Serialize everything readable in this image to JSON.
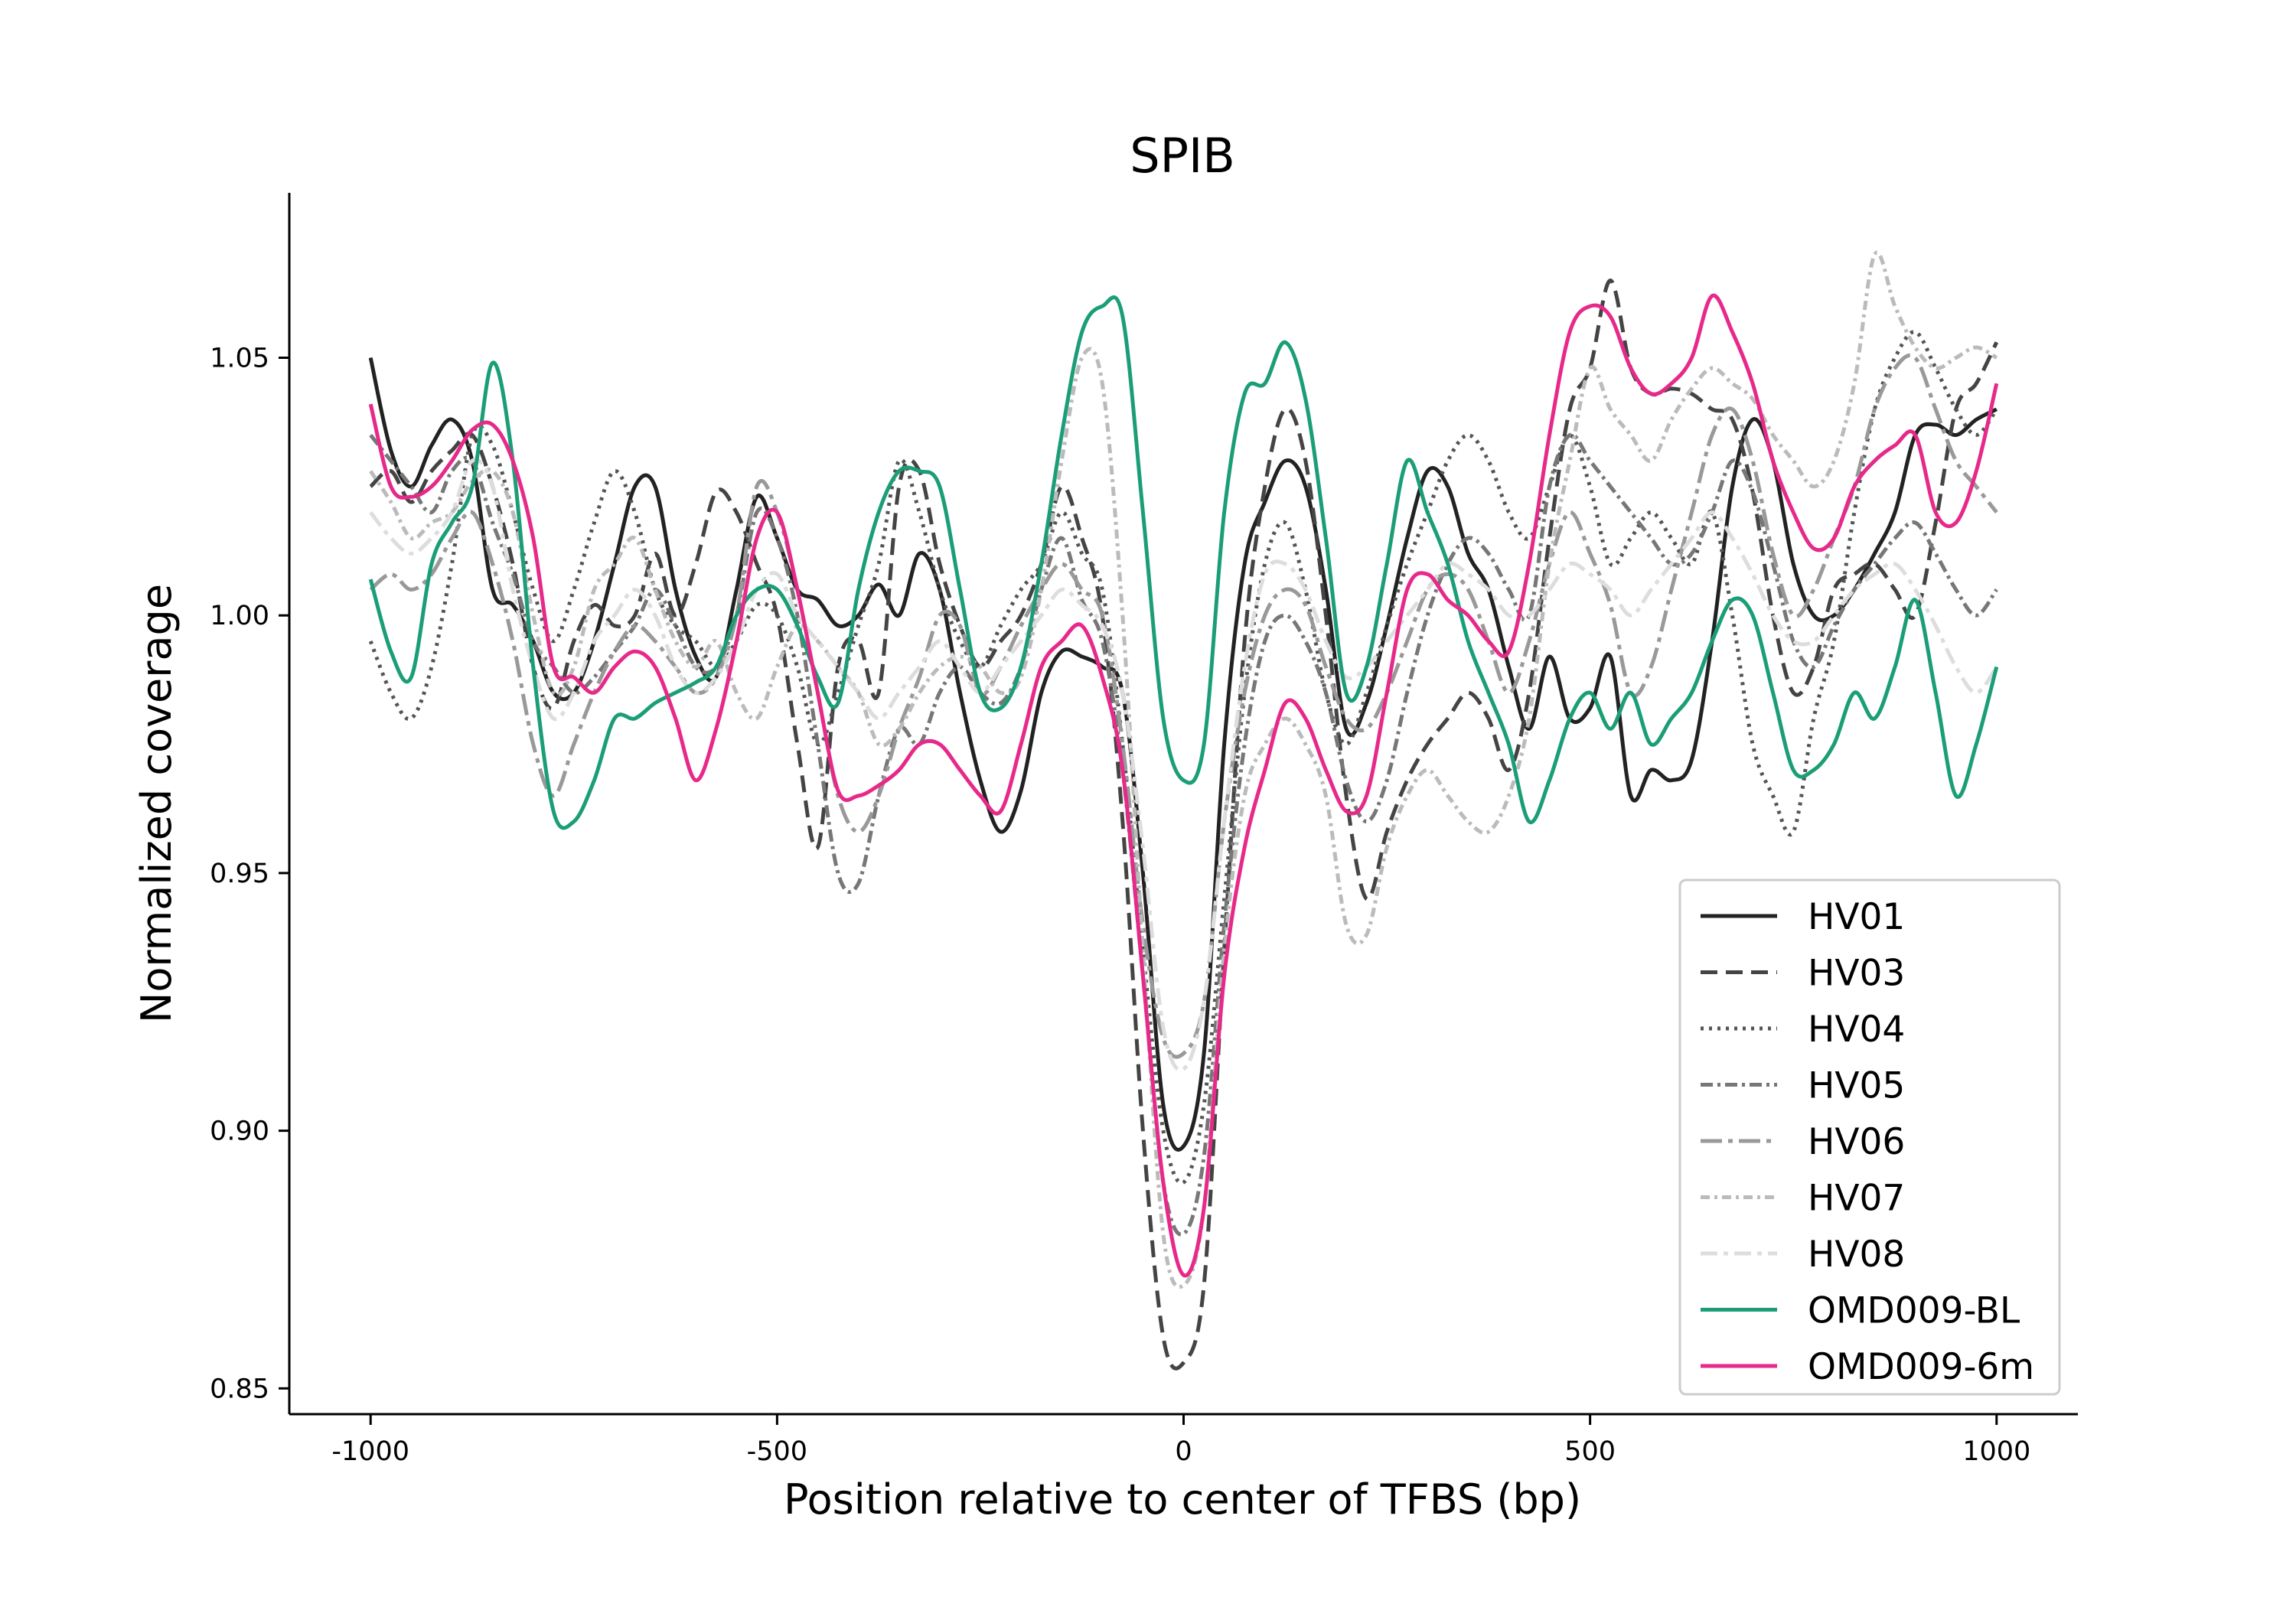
{
  "chart_data": {
    "type": "line",
    "title": "SPIB",
    "xlabel": "Position relative to center of TFBS (bp)",
    "ylabel": "Normalized coverage",
    "xlim": [
      -1100,
      1100
    ],
    "ylim": [
      0.845,
      1.082
    ],
    "xticks": [
      -1000,
      -500,
      0,
      500,
      1000
    ],
    "xtick_labels": [
      "-1000",
      "-500",
      "0",
      "500",
      "1000"
    ],
    "yticks": [
      0.85,
      0.9,
      0.95,
      1.0,
      1.05
    ],
    "ytick_labels": [
      "0.85",
      "0.90",
      "0.95",
      "1.00",
      "1.05"
    ],
    "grid": false,
    "legend_position": "lower-right",
    "x": [
      -1000,
      -975,
      -950,
      -925,
      -900,
      -875,
      -850,
      -825,
      -800,
      -775,
      -750,
      -725,
      -700,
      -675,
      -650,
      -625,
      -600,
      -575,
      -550,
      -525,
      -500,
      -475,
      -450,
      -425,
      -400,
      -375,
      -350,
      -325,
      -300,
      -275,
      -250,
      -225,
      -200,
      -175,
      -150,
      -125,
      -100,
      -75,
      -50,
      -25,
      0,
      25,
      50,
      75,
      100,
      125,
      150,
      175,
      200,
      225,
      250,
      275,
      300,
      325,
      350,
      375,
      400,
      425,
      450,
      475,
      500,
      525,
      550,
      575,
      600,
      625,
      650,
      675,
      700,
      725,
      750,
      775,
      800,
      825,
      850,
      875,
      900,
      925,
      950,
      975,
      1000
    ],
    "series": [
      {
        "name": "HV01",
        "color": "#222222",
        "dash": "",
        "values": [
          1.05,
          1.032,
          1.025,
          1.033,
          1.038,
          1.03,
          1.005,
          1.002,
          0.995,
          0.985,
          0.985,
          0.995,
          1.01,
          1.025,
          1.025,
          1.005,
          0.992,
          0.988,
          1.005,
          1.023,
          1.015,
          1.005,
          1.003,
          0.998,
          1.0,
          1.006,
          1.0,
          1.012,
          1.005,
          0.985,
          0.968,
          0.958,
          0.966,
          0.985,
          0.993,
          0.992,
          0.99,
          0.985,
          0.95,
          0.905,
          0.897,
          0.915,
          0.975,
          1.01,
          1.022,
          1.03,
          1.025,
          1.005,
          0.978,
          0.983,
          0.998,
          1.015,
          1.028,
          1.025,
          1.012,
          1.005,
          0.99,
          0.978,
          0.992,
          0.98,
          0.982,
          0.992,
          0.965,
          0.97,
          0.968,
          0.972,
          0.995,
          1.025,
          1.038,
          1.03,
          1.01,
          1.0,
          1.0,
          1.005,
          1.012,
          1.02,
          1.035,
          1.037,
          1.035,
          1.038,
          1.04
        ]
      },
      {
        "name": "HV03",
        "color": "#444444",
        "dash": "22 11",
        "values": [
          1.025,
          1.028,
          1.022,
          1.028,
          1.032,
          1.035,
          1.025,
          1.01,
          0.99,
          0.982,
          0.995,
          1.002,
          0.998,
          1.0,
          1.012,
          1.0,
          1.01,
          1.024,
          1.02,
          1.01,
          1.0,
          0.975,
          0.955,
          0.99,
          0.995,
          0.985,
          1.025,
          1.028,
          1.01,
          0.998,
          0.99,
          0.995,
          1.0,
          1.01,
          1.025,
          1.015,
          1.0,
          0.96,
          0.9,
          0.86,
          0.855,
          0.87,
          0.935,
          0.995,
          1.025,
          1.04,
          1.03,
          1.0,
          0.965,
          0.945,
          0.958,
          0.968,
          0.975,
          0.98,
          0.985,
          0.98,
          0.97,
          0.985,
          1.015,
          1.04,
          1.048,
          1.065,
          1.048,
          1.043,
          1.044,
          1.043,
          1.04,
          1.038,
          1.024,
          1.0,
          0.985,
          0.99,
          1.005,
          1.008,
          1.01,
          1.005,
          1.0,
          1.018,
          1.04,
          1.045,
          1.053
        ]
      },
      {
        "name": "HV04",
        "color": "#555555",
        "dash": "4 7",
        "values": [
          0.995,
          0.985,
          0.98,
          0.99,
          1.01,
          1.035,
          1.033,
          1.02,
          1.005,
          0.995,
          1.005,
          1.018,
          1.028,
          1.02,
          1.005,
          0.998,
          0.995,
          0.99,
          0.995,
          1.002,
          1.0,
          0.99,
          0.975,
          0.985,
          0.998,
          1.01,
          1.03,
          1.02,
          1.005,
          0.995,
          0.99,
          0.998,
          1.005,
          1.01,
          1.02,
          1.012,
          1.005,
          0.975,
          0.935,
          0.9,
          0.89,
          0.905,
          0.945,
          0.985,
          1.01,
          1.018,
          1.005,
          0.985,
          0.975,
          0.985,
          0.998,
          1.01,
          1.02,
          1.03,
          1.035,
          1.03,
          1.02,
          1.015,
          1.025,
          1.035,
          1.025,
          1.01,
          1.015,
          1.02,
          1.015,
          1.01,
          1.02,
          1.0,
          0.975,
          0.965,
          0.958,
          0.98,
          0.995,
          1.02,
          1.04,
          1.05,
          1.055,
          1.048,
          1.04,
          1.035,
          1.04
        ]
      },
      {
        "name": "HV05",
        "color": "#777777",
        "dash": "16 6 4 6",
        "values": [
          1.035,
          1.03,
          1.025,
          1.02,
          1.028,
          1.03,
          1.018,
          1.008,
          0.995,
          0.99,
          0.985,
          0.988,
          0.993,
          0.998,
          1.005,
          0.998,
          0.99,
          0.99,
          1.0,
          1.02,
          1.015,
          1.0,
          0.975,
          0.95,
          0.948,
          0.965,
          0.978,
          0.975,
          0.985,
          0.99,
          0.985,
          0.983,
          0.99,
          1.005,
          1.015,
          1.003,
          0.995,
          0.97,
          0.93,
          0.89,
          0.88,
          0.895,
          0.94,
          0.975,
          0.995,
          1.0,
          0.995,
          0.985,
          0.968,
          0.96,
          0.968,
          0.985,
          1.0,
          1.01,
          1.015,
          1.012,
          1.005,
          1.0,
          1.025,
          1.035,
          1.03,
          1.025,
          1.02,
          1.015,
          1.01,
          1.012,
          1.02,
          1.03,
          1.024,
          1.01,
          0.995,
          0.99,
          0.998,
          1.005,
          1.01,
          1.015,
          1.018,
          1.012,
          1.005,
          1.0,
          1.005
        ]
      },
      {
        "name": "HV06",
        "color": "#999999",
        "dash": "28 8 6 8",
        "values": [
          1.005,
          1.008,
          1.005,
          1.008,
          1.015,
          1.02,
          1.01,
          0.995,
          0.975,
          0.965,
          0.975,
          0.985,
          0.993,
          0.998,
          0.995,
          0.99,
          0.985,
          0.988,
          1.0,
          1.025,
          1.02,
          1.005,
          0.985,
          0.965,
          0.958,
          0.965,
          0.978,
          0.988,
          1.0,
          0.998,
          0.985,
          0.99,
          0.998,
          1.005,
          1.01,
          1.005,
          1.0,
          0.975,
          0.94,
          0.918,
          0.915,
          0.925,
          0.96,
          0.985,
          1.0,
          1.005,
          1.002,
          0.99,
          0.98,
          0.978,
          0.985,
          0.995,
          1.005,
          1.008,
          1.005,
          0.995,
          0.985,
          0.995,
          1.01,
          1.02,
          1.012,
          1.002,
          0.985,
          0.99,
          1.005,
          1.02,
          1.035,
          1.04,
          1.03,
          1.012,
          1.0,
          1.005,
          1.015,
          1.025,
          1.04,
          1.048,
          1.05,
          1.04,
          1.03,
          1.025,
          1.02
        ]
      },
      {
        "name": "HV07",
        "color": "#bbbbbb",
        "dash": "12 6 4 6",
        "values": [
          1.028,
          1.022,
          1.015,
          1.018,
          1.02,
          1.026,
          1.028,
          1.02,
          1.0,
          0.985,
          0.99,
          1.005,
          1.01,
          1.015,
          1.005,
          0.995,
          0.99,
          0.995,
          0.985,
          0.98,
          0.99,
          0.998,
          0.995,
          0.99,
          0.985,
          0.975,
          0.978,
          0.985,
          0.99,
          0.992,
          0.99,
          0.985,
          0.988,
          1.005,
          1.03,
          1.05,
          1.045,
          1.0,
          0.935,
          0.88,
          0.87,
          0.885,
          0.935,
          0.965,
          0.975,
          0.98,
          0.975,
          0.965,
          0.94,
          0.938,
          0.955,
          0.965,
          0.97,
          0.965,
          0.96,
          0.958,
          0.965,
          0.98,
          1.01,
          1.03,
          1.048,
          1.04,
          1.035,
          1.03,
          1.038,
          1.044,
          1.048,
          1.045,
          1.042,
          1.035,
          1.03,
          1.025,
          1.03,
          1.045,
          1.07,
          1.06,
          1.052,
          1.048,
          1.05,
          1.052,
          1.05
        ]
      },
      {
        "name": "HV08",
        "color": "#dddddd",
        "dash": "22 8 6 8",
        "values": [
          1.02,
          1.015,
          1.012,
          1.015,
          1.02,
          1.03,
          1.025,
          1.005,
          0.99,
          0.98,
          0.985,
          0.995,
          1.0,
          1.005,
          1.0,
          0.99,
          0.985,
          0.988,
          0.995,
          1.005,
          1.008,
          1.0,
          0.995,
          0.99,
          0.985,
          0.98,
          0.985,
          0.99,
          0.995,
          0.99,
          0.985,
          0.99,
          0.995,
          1.0,
          1.005,
          1.002,
          0.998,
          0.985,
          0.955,
          0.92,
          0.912,
          0.925,
          0.96,
          0.99,
          1.008,
          1.01,
          1.005,
          0.995,
          0.988,
          0.99,
          0.995,
          1.0,
          1.005,
          1.01,
          1.008,
          1.005,
          1.0,
          1.0,
          1.005,
          1.01,
          1.008,
          1.005,
          1.0,
          1.005,
          1.01,
          1.015,
          1.02,
          1.015,
          1.008,
          1.0,
          0.995,
          0.995,
          1.0,
          1.005,
          1.008,
          1.01,
          1.005,
          0.998,
          0.99,
          0.985,
          0.99
        ]
      },
      {
        "name": "OMD009-BL",
        "color": "#1b9e77",
        "dash": "",
        "values": [
          1.007,
          0.993,
          0.988,
          1.01,
          1.018,
          1.025,
          1.049,
          1.03,
          0.99,
          0.962,
          0.96,
          0.968,
          0.98,
          0.98,
          0.983,
          0.985,
          0.987,
          0.99,
          1.0,
          1.005,
          1.005,
          0.998,
          0.988,
          0.983,
          1.005,
          1.02,
          1.028,
          1.028,
          1.025,
          1.005,
          0.985,
          0.982,
          0.99,
          1.01,
          1.035,
          1.055,
          1.06,
          1.058,
          1.02,
          0.98,
          0.968,
          0.975,
          1.02,
          1.043,
          1.045,
          1.053,
          1.042,
          1.015,
          0.985,
          0.99,
          1.01,
          1.03,
          1.02,
          1.01,
          0.995,
          0.985,
          0.975,
          0.96,
          0.968,
          0.98,
          0.985,
          0.978,
          0.985,
          0.975,
          0.98,
          0.985,
          0.995,
          1.003,
          1.0,
          0.985,
          0.97,
          0.97,
          0.975,
          0.985,
          0.98,
          0.99,
          1.003,
          0.985,
          0.965,
          0.975,
          0.99
        ]
      },
      {
        "name": "OMD009-6m",
        "color": "#e7298a",
        "dash": "",
        "values": [
          1.041,
          1.025,
          1.023,
          1.025,
          1.03,
          1.036,
          1.037,
          1.03,
          1.015,
          0.99,
          0.988,
          0.985,
          0.99,
          0.993,
          0.99,
          0.98,
          0.968,
          0.978,
          0.995,
          1.015,
          1.02,
          1.005,
          0.985,
          0.966,
          0.965,
          0.967,
          0.97,
          0.975,
          0.975,
          0.97,
          0.965,
          0.962,
          0.975,
          0.99,
          0.995,
          0.998,
          0.988,
          0.97,
          0.93,
          0.89,
          0.872,
          0.885,
          0.93,
          0.955,
          0.97,
          0.983,
          0.98,
          0.97,
          0.962,
          0.965,
          0.985,
          1.005,
          1.008,
          1.003,
          1.0,
          0.995,
          0.993,
          1.01,
          1.035,
          1.055,
          1.06,
          1.058,
          1.048,
          1.043,
          1.045,
          1.05,
          1.062,
          1.055,
          1.045,
          1.03,
          1.02,
          1.013,
          1.015,
          1.025,
          1.03,
          1.033,
          1.035,
          1.02,
          1.018,
          1.028,
          1.045
        ]
      }
    ]
  }
}
